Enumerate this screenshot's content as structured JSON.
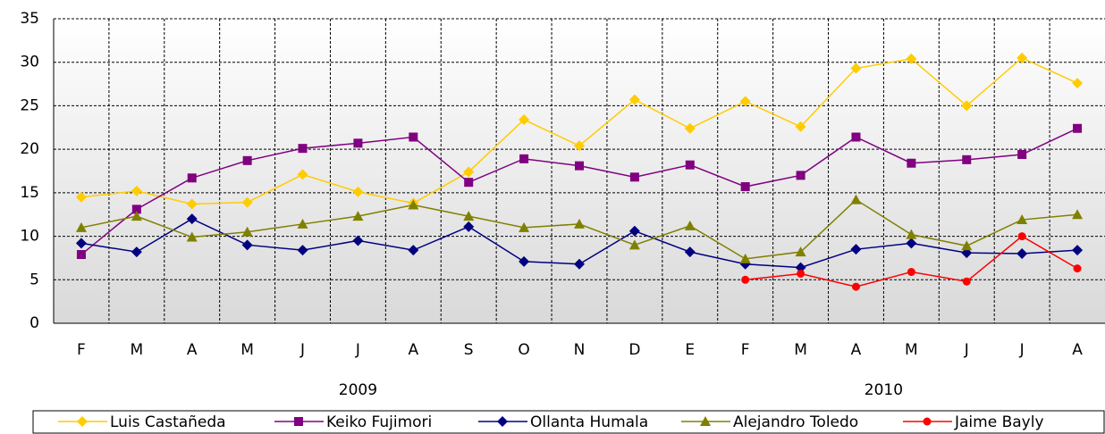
{
  "chart_data": {
    "type": "line",
    "categories": [
      "F",
      "M",
      "A",
      "M",
      "J",
      "J",
      "A",
      "S",
      "O",
      "N",
      "D",
      "E",
      "F",
      "M",
      "A",
      "M",
      "J",
      "J",
      "A"
    ],
    "groups": [
      {
        "label": "2009",
        "count": 11
      },
      {
        "label": "2010",
        "count": 8
      }
    ],
    "series": [
      {
        "name": "Luis Castañeda",
        "color": "#ffcc00",
        "marker": "diamond",
        "values": [
          14.5,
          15.2,
          13.7,
          13.9,
          17.1,
          15.1,
          13.8,
          17.4,
          23.4,
          20.4,
          25.7,
          22.4,
          25.5,
          22.6,
          29.3,
          30.4,
          25.0,
          30.5,
          27.6
        ]
      },
      {
        "name": "Keiko Fujimori",
        "color": "#800080",
        "marker": "square",
        "values": [
          7.9,
          13.1,
          16.7,
          18.7,
          20.1,
          20.7,
          21.4,
          16.2,
          18.9,
          18.1,
          16.8,
          18.2,
          15.7,
          17.0,
          21.4,
          18.4,
          18.8,
          19.4,
          22.4
        ]
      },
      {
        "name": "Ollanta Humala",
        "color": "#000080",
        "marker": "diamond",
        "values": [
          9.2,
          8.2,
          12.0,
          9.0,
          8.4,
          9.5,
          8.4,
          11.1,
          7.1,
          6.8,
          10.6,
          8.2,
          6.8,
          6.4,
          8.5,
          9.2,
          8.1,
          8.0,
          8.4
        ]
      },
      {
        "name": "Alejandro Toledo",
        "color": "#808000",
        "marker": "triangle",
        "values": [
          11.0,
          12.3,
          9.9,
          10.5,
          11.4,
          12.3,
          13.6,
          12.3,
          11.0,
          11.4,
          9.0,
          11.2,
          7.4,
          8.2,
          14.2,
          10.2,
          8.9,
          11.9,
          12.5
        ]
      },
      {
        "name": "Jaime Bayly",
        "color": "#ff0000",
        "marker": "circle",
        "values": [
          null,
          null,
          null,
          null,
          null,
          null,
          null,
          null,
          null,
          null,
          null,
          null,
          5.0,
          5.7,
          4.2,
          5.9,
          4.8,
          10.0,
          6.3
        ]
      }
    ],
    "ylim": [
      0,
      35
    ],
    "yticks": [
      0,
      5,
      10,
      15,
      20,
      25,
      30,
      35
    ],
    "grid": true,
    "legend": "bottom"
  }
}
